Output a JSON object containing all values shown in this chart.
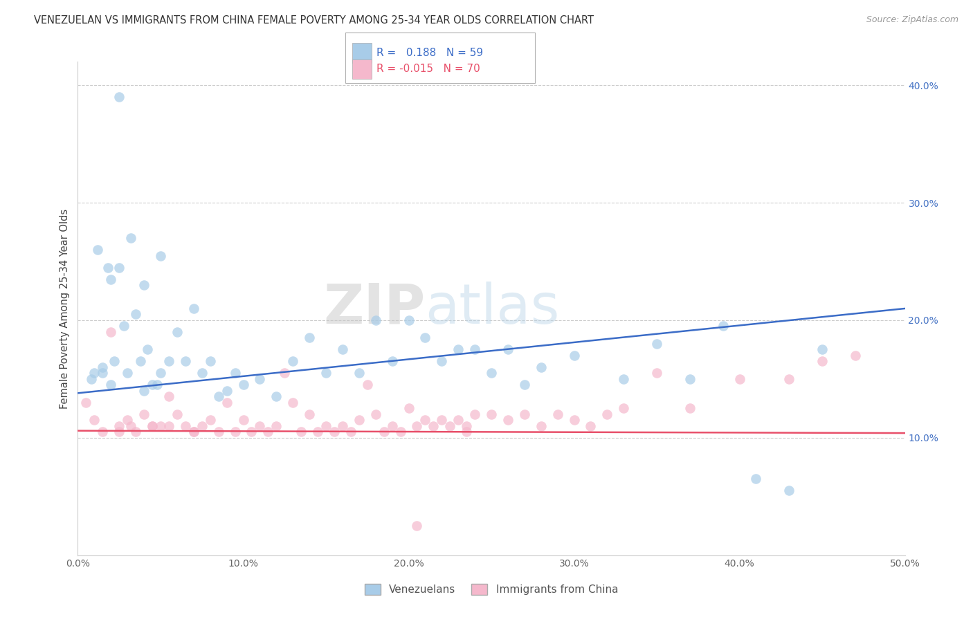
{
  "title": "VENEZUELAN VS IMMIGRANTS FROM CHINA FEMALE POVERTY AMONG 25-34 YEAR OLDS CORRELATION CHART",
  "source": "Source: ZipAtlas.com",
  "ylabel": "Female Poverty Among 25-34 Year Olds",
  "xlim": [
    0,
    50
  ],
  "ylim": [
    0,
    42
  ],
  "blue_color": "#a8cce8",
  "pink_color": "#f5b8cc",
  "trend_blue": "#3b6cc7",
  "trend_pink": "#e8506a",
  "watermark_zip": "ZIP",
  "watermark_atlas": "atlas",
  "venezuelan_x": [
    2.5,
    3.2,
    0.8,
    1.2,
    1.5,
    1.8,
    2.0,
    2.2,
    2.8,
    3.0,
    3.5,
    3.8,
    4.0,
    4.2,
    4.5,
    4.8,
    5.0,
    5.5,
    6.0,
    6.5,
    7.0,
    7.5,
    8.0,
    8.5,
    9.0,
    9.5,
    10.0,
    11.0,
    12.0,
    13.0,
    14.0,
    15.0,
    16.0,
    17.0,
    18.0,
    19.0,
    20.0,
    21.0,
    22.0,
    23.0,
    24.0,
    25.0,
    26.0,
    27.0,
    28.0,
    30.0,
    33.0,
    35.0,
    37.0,
    39.0,
    41.0,
    43.0,
    45.0,
    2.0,
    2.5,
    4.0,
    5.0,
    1.5,
    1.0
  ],
  "venezuelan_y": [
    39.0,
    27.0,
    15.0,
    26.0,
    15.5,
    24.5,
    14.5,
    16.5,
    19.5,
    15.5,
    20.5,
    16.5,
    14.0,
    17.5,
    14.5,
    14.5,
    15.5,
    16.5,
    19.0,
    16.5,
    21.0,
    15.5,
    16.5,
    13.5,
    14.0,
    15.5,
    14.5,
    15.0,
    13.5,
    16.5,
    18.5,
    15.5,
    17.5,
    15.5,
    20.0,
    16.5,
    20.0,
    18.5,
    16.5,
    17.5,
    17.5,
    15.5,
    17.5,
    14.5,
    16.0,
    17.0,
    15.0,
    18.0,
    15.0,
    19.5,
    6.5,
    5.5,
    17.5,
    23.5,
    24.5,
    23.0,
    25.5,
    16.0,
    15.5
  ],
  "china_x": [
    0.5,
    1.0,
    1.5,
    2.0,
    2.5,
    3.0,
    3.5,
    4.0,
    4.5,
    5.0,
    5.5,
    6.0,
    6.5,
    7.0,
    7.5,
    8.0,
    8.5,
    9.0,
    10.0,
    10.5,
    11.0,
    11.5,
    12.0,
    12.5,
    13.0,
    13.5,
    14.0,
    14.5,
    15.0,
    15.5,
    16.0,
    16.5,
    17.0,
    17.5,
    18.0,
    18.5,
    19.0,
    19.5,
    20.0,
    20.5,
    21.0,
    21.5,
    22.0,
    22.5,
    23.0,
    23.5,
    24.0,
    25.0,
    26.0,
    27.0,
    28.0,
    29.0,
    30.0,
    31.0,
    32.0,
    33.0,
    35.0,
    37.0,
    40.0,
    43.0,
    45.0,
    47.0,
    2.5,
    3.2,
    4.5,
    5.5,
    7.0,
    9.5,
    20.5,
    23.5
  ],
  "china_y": [
    13.0,
    11.5,
    10.5,
    19.0,
    11.0,
    11.5,
    10.5,
    12.0,
    11.0,
    11.0,
    11.0,
    12.0,
    11.0,
    10.5,
    11.0,
    11.5,
    10.5,
    13.0,
    11.5,
    10.5,
    11.0,
    10.5,
    11.0,
    15.5,
    13.0,
    10.5,
    12.0,
    10.5,
    11.0,
    10.5,
    11.0,
    10.5,
    11.5,
    14.5,
    12.0,
    10.5,
    11.0,
    10.5,
    12.5,
    11.0,
    11.5,
    11.0,
    11.5,
    11.0,
    11.5,
    11.0,
    12.0,
    12.0,
    11.5,
    12.0,
    11.0,
    12.0,
    11.5,
    11.0,
    12.0,
    12.5,
    15.5,
    12.5,
    15.0,
    15.0,
    16.5,
    17.0,
    10.5,
    11.0,
    11.0,
    13.5,
    10.5,
    10.5,
    2.5,
    10.5
  ],
  "ven_trend_x0": 0,
  "ven_trend_y0": 13.8,
  "ven_trend_x1": 50,
  "ven_trend_y1": 21.0,
  "china_trend_x0": 0,
  "china_trend_y0": 10.6,
  "china_trend_x1": 50,
  "china_trend_y1": 10.4
}
